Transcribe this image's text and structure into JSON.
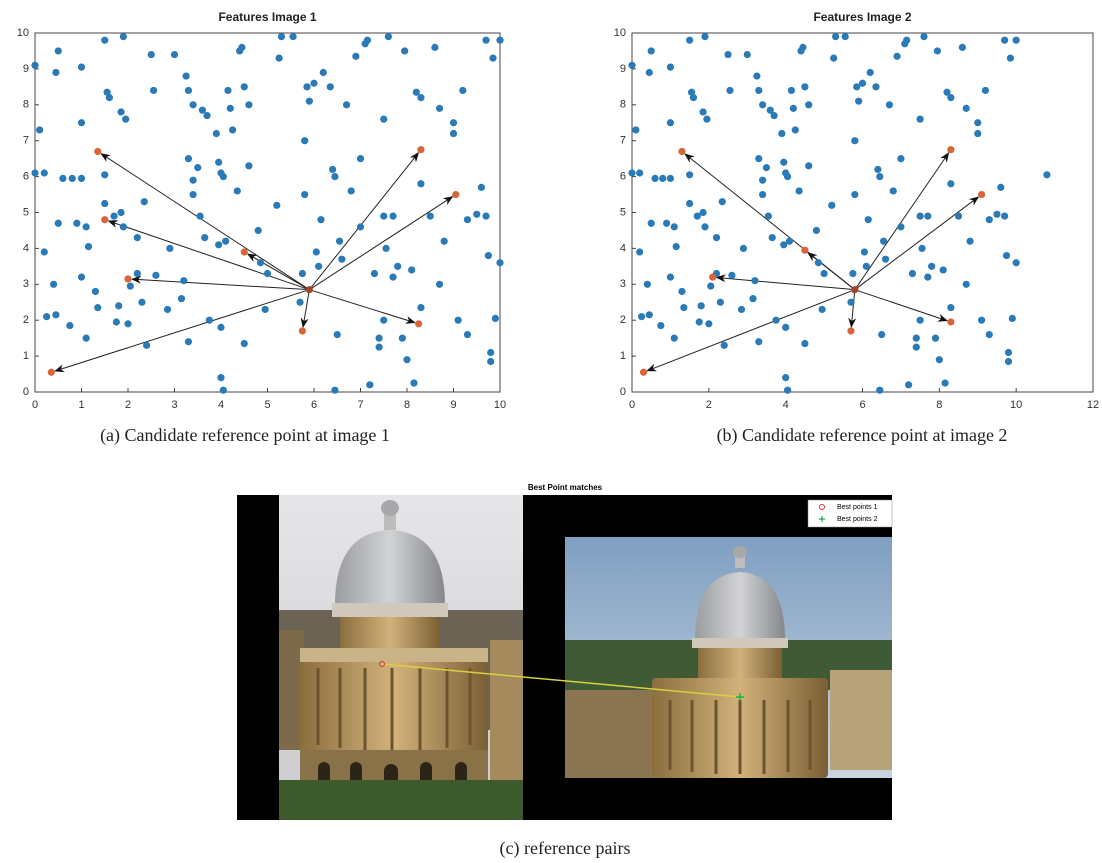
{
  "chart_data": [
    {
      "type": "scatter",
      "title": "Features Image 1",
      "caption": "(a)  Candidate reference point at image 1",
      "xlim": [
        0,
        10
      ],
      "ylim": [
        0,
        10
      ],
      "xticks": [
        0,
        1,
        2,
        3,
        4,
        5,
        6,
        7,
        8,
        9,
        10
      ],
      "yticks": [
        0,
        1,
        2,
        3,
        4,
        5,
        6,
        7,
        8,
        9,
        10
      ],
      "arrows": true,
      "series": [
        {
          "color": "#2a7ab8",
          "x": [
            0,
            0.1,
            0.5,
            0.45,
            0,
            0.2,
            0.6,
            0.8,
            1,
            0.5,
            0.2,
            0.4,
            0.25,
            0.45,
            0.75,
            1,
            1,
            0.9,
            1.1,
            1.15,
            1,
            1.3,
            1.35,
            1.1,
            1.5,
            1.6,
            1.55,
            1.5,
            1.5,
            1.7,
            1.85,
            1.9,
            1.8,
            1.75,
            2,
            1.9,
            1.85,
            1.95,
            2.2,
            2.2,
            2.05,
            2.4,
            2.3,
            2.35,
            2.6,
            2.55,
            2.5,
            2.85,
            2.9,
            3,
            3.2,
            3.15,
            3.3,
            3.25,
            3.3,
            3.4,
            3.3,
            3.4,
            3.4,
            3.5,
            3.55,
            3.65,
            3.6,
            3.7,
            3.75,
            3.9,
            3.95,
            4,
            4.05,
            3.95,
            4.1,
            4,
            4,
            4.05,
            4.15,
            4.2,
            4.25,
            4.35,
            4.4,
            4.45,
            4.5,
            4.6,
            4.6,
            4.8,
            4.85,
            4.95,
            4.5,
            5.2,
            5,
            5.25,
            5.3,
            5.55,
            5.7,
            5.8,
            5.8,
            5.75,
            5.85,
            5.9,
            6,
            6.05,
            6.1,
            6.15,
            6.2,
            6.35,
            6.4,
            6.45,
            6.5,
            6.55,
            6.6,
            6.45,
            6.7,
            6.8,
            6.9,
            7,
            7,
            7.1,
            7.15,
            7.2,
            7.3,
            7.5,
            7.5,
            7.55,
            7.6,
            7.4,
            7.4,
            7.5,
            7.7,
            7.7,
            7.8,
            7.9,
            7.95,
            8,
            8.1,
            8.15,
            8.2,
            8.3,
            8.3,
            8.3,
            8.5,
            8.6,
            8.7,
            8.7,
            8.8,
            9,
            9,
            9.1,
            9.2,
            9.3,
            9.3,
            9.5,
            9.6,
            9.7,
            9.7,
            9.75,
            9.8,
            9.8,
            9.85,
            9.9,
            10,
            10
          ],
          "values": [
            9.1,
            7.3,
            9.5,
            8.9,
            6.1,
            6.1,
            5.95,
            5.95,
            5.95,
            4.7,
            3.9,
            3,
            2.1,
            2.15,
            1.85,
            9.05,
            7.5,
            4.7,
            4.6,
            4.05,
            3.2,
            2.8,
            2.35,
            1.5,
            9.8,
            8.2,
            8.35,
            6.05,
            5.25,
            4.9,
            5,
            4.6,
            2.4,
            1.95,
            1.9,
            9.9,
            7.8,
            7.6,
            4.3,
            3.3,
            2.95,
            1.3,
            2.5,
            5.3,
            3.25,
            8.4,
            9.4,
            2.3,
            4,
            9.4,
            3.1,
            2.6,
            1.4,
            8.8,
            8.4,
            8,
            6.5,
            5.9,
            5.5,
            6.25,
            4.9,
            4.3,
            7.85,
            7.7,
            2,
            7.2,
            6.4,
            6.1,
            6,
            4.1,
            4.2,
            1.8,
            0.4,
            0.05,
            8.4,
            7.9,
            7.3,
            5.6,
            9.5,
            9.6,
            8.5,
            8,
            6.3,
            4.5,
            3.6,
            2.3,
            1.35,
            5.2,
            3.3,
            9.3,
            9.9,
            9.9,
            2.5,
            7,
            5.5,
            3.3,
            8.5,
            8.1,
            8.6,
            3.9,
            3.5,
            4.8,
            8.9,
            8.5,
            6.2,
            6,
            1.6,
            4.2,
            3.7,
            0.05,
            8,
            5.6,
            9.35,
            6.5,
            4.6,
            9.7,
            9.8,
            0.2,
            3.3,
            7.6,
            4.9,
            4,
            9.9,
            1.5,
            1.25,
            2,
            3.2,
            4.9,
            3.5,
            1.5,
            9.5,
            0.9,
            3.4,
            0.25,
            8.35,
            8.2,
            5.8,
            2.35,
            4.9,
            9.6,
            7.9,
            3,
            4.2,
            7.5,
            7.2,
            2,
            8.4,
            4.8,
            1.6,
            4.95,
            5.7,
            9.8,
            4.9,
            3.8,
            1.1,
            0.85,
            9.3,
            2.05,
            9.8,
            3.6
          ]
        },
        {
          "color": "#d9643a",
          "x": [
            1.35,
            1.5,
            2,
            0.35,
            4.5,
            5.75,
            8.3,
            9.05,
            8.25
          ],
          "values": [
            6.7,
            4.8,
            3.15,
            0.55,
            3.9,
            1.7,
            6.75,
            5.5,
            1.9
          ]
        },
        {
          "color": "#a0462a",
          "x": [
            5.9
          ],
          "values": [
            2.85
          ]
        }
      ]
    },
    {
      "type": "scatter",
      "title": "Features Image 2",
      "caption": "(b)  Candidate reference point at image 2",
      "xlim": [
        0,
        12
      ],
      "ylim": [
        0,
        10
      ],
      "xticks": [
        0,
        2,
        4,
        6,
        8,
        10,
        12
      ],
      "yticks": [
        0,
        1,
        2,
        3,
        4,
        5,
        6,
        7,
        8,
        9,
        10
      ],
      "arrows": true,
      "series": [
        {
          "color": "#2a7ab8",
          "x": [
            0,
            0.1,
            0.5,
            0.45,
            0,
            0.2,
            0.6,
            0.8,
            1,
            0.5,
            0.2,
            0.4,
            0.25,
            0.45,
            0.75,
            1,
            1,
            0.9,
            1.1,
            1.15,
            1,
            1.3,
            1.35,
            1.1,
            1.5,
            1.6,
            1.55,
            1.5,
            1.5,
            1.7,
            1.85,
            1.9,
            1.8,
            1.75,
            2,
            1.9,
            1.85,
            1.95,
            2.2,
            2.2,
            2.05,
            2.4,
            2.3,
            2.35,
            2.6,
            2.55,
            2.5,
            2.85,
            2.9,
            3,
            3.2,
            3.15,
            3.3,
            3.25,
            3.3,
            3.4,
            3.3,
            3.4,
            3.4,
            3.5,
            3.55,
            3.65,
            3.6,
            3.7,
            3.75,
            3.9,
            3.95,
            4,
            4.05,
            3.95,
            4.1,
            4,
            4,
            4.05,
            4.15,
            4.2,
            4.25,
            4.35,
            4.4,
            4.45,
            4.5,
            4.6,
            4.6,
            4.8,
            4.85,
            4.95,
            4.5,
            5.2,
            5,
            5.25,
            5.3,
            5.55,
            5.7,
            5.8,
            5.8,
            5.75,
            5.85,
            5.9,
            6,
            6.05,
            6.1,
            6.15,
            6.2,
            6.35,
            6.4,
            6.45,
            6.5,
            6.55,
            6.6,
            6.45,
            6.7,
            6.8,
            6.9,
            7,
            7,
            7.1,
            7.15,
            7.2,
            7.3,
            7.5,
            7.5,
            7.55,
            7.6,
            7.4,
            7.4,
            7.5,
            7.7,
            7.7,
            7.8,
            7.9,
            7.95,
            8,
            8.1,
            8.15,
            8.2,
            8.3,
            8.3,
            8.3,
            8.5,
            8.6,
            8.7,
            8.7,
            8.8,
            9,
            9,
            9.1,
            9.2,
            9.3,
            9.3,
            9.5,
            9.6,
            9.7,
            9.7,
            9.75,
            9.8,
            9.8,
            9.85,
            9.9,
            10,
            10,
            10.8
          ],
          "values": [
            9.1,
            7.3,
            9.5,
            8.9,
            6.1,
            6.1,
            5.95,
            5.95,
            5.95,
            4.7,
            3.9,
            3,
            2.1,
            2.15,
            1.85,
            9.05,
            7.5,
            4.7,
            4.6,
            4.05,
            3.2,
            2.8,
            2.35,
            1.5,
            9.8,
            8.2,
            8.35,
            6.05,
            5.25,
            4.9,
            5,
            4.6,
            2.4,
            1.95,
            1.9,
            9.9,
            7.8,
            7.6,
            4.3,
            3.3,
            2.95,
            1.3,
            2.5,
            5.3,
            3.25,
            8.4,
            9.4,
            2.3,
            4,
            9.4,
            3.1,
            2.6,
            1.4,
            8.8,
            8.4,
            8,
            6.5,
            5.9,
            5.5,
            6.25,
            4.9,
            4.3,
            7.85,
            7.7,
            2,
            7.2,
            6.4,
            6.1,
            6,
            4.1,
            4.2,
            1.8,
            0.4,
            0.05,
            8.4,
            7.9,
            7.3,
            5.6,
            9.5,
            9.6,
            8.5,
            8,
            6.3,
            4.5,
            3.6,
            2.3,
            1.35,
            5.2,
            3.3,
            9.3,
            9.9,
            9.9,
            2.5,
            7,
            5.5,
            3.3,
            8.5,
            8.1,
            8.6,
            3.9,
            3.5,
            4.8,
            8.9,
            8.5,
            6.2,
            6,
            1.6,
            4.2,
            3.7,
            0.05,
            8,
            5.6,
            9.35,
            6.5,
            4.6,
            9.7,
            9.8,
            0.2,
            3.3,
            7.6,
            4.9,
            4,
            9.9,
            1.5,
            1.25,
            2,
            3.2,
            4.9,
            3.5,
            1.5,
            9.5,
            0.9,
            3.4,
            0.25,
            8.35,
            8.2,
            5.8,
            2.35,
            4.9,
            9.6,
            7.9,
            3,
            4.2,
            7.5,
            7.2,
            2,
            8.4,
            4.8,
            1.6,
            4.95,
            5.7,
            9.8,
            4.9,
            3.8,
            1.1,
            0.85,
            9.3,
            2.05,
            9.8,
            3.6,
            6.05
          ]
        },
        {
          "color": "#d9643a",
          "x": [
            1.3,
            2.1,
            0.3,
            4.5,
            5.7,
            8.3,
            9.1,
            8.3
          ],
          "values": [
            6.7,
            3.2,
            0.55,
            3.95,
            1.7,
            6.75,
            5.5,
            1.95
          ]
        },
        {
          "color": "#a0462a",
          "x": [
            5.8
          ],
          "values": [
            2.85
          ]
        }
      ]
    }
  ],
  "panel_c": {
    "title": "Best Point  matches",
    "caption": "(c) reference pairs",
    "legend": [
      {
        "name": "Best points 1",
        "color": "#e03030"
      },
      {
        "name": "Best points 2",
        "color": "#20b040"
      }
    ]
  }
}
